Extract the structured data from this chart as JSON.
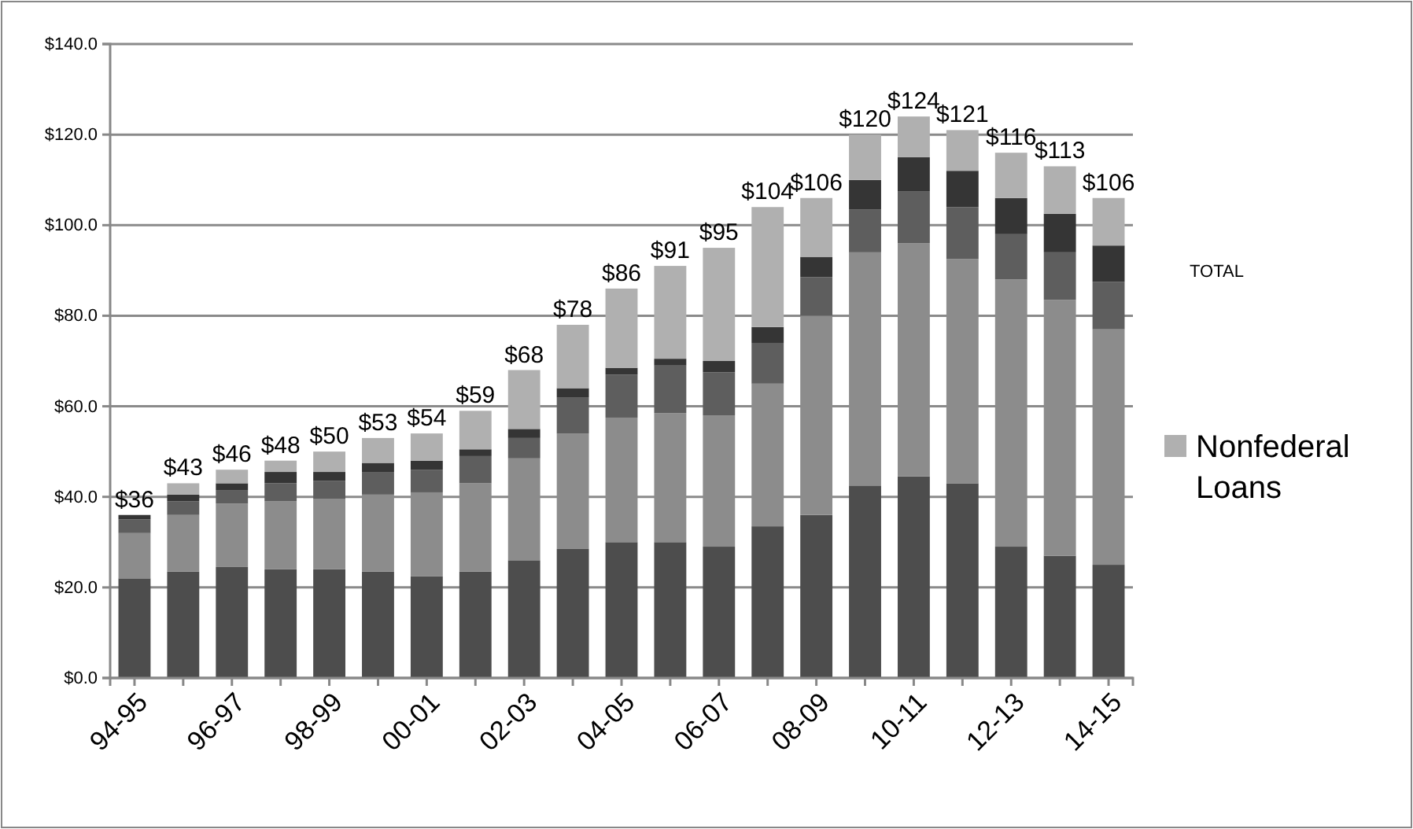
{
  "chart_data": {
    "type": "bar",
    "stacked": true,
    "categories": [
      "94-95",
      null,
      "96-97",
      null,
      "98-99",
      null,
      "00-01",
      null,
      "02-03",
      null,
      "04-05",
      null,
      "06-07",
      null,
      "08-09",
      null,
      "10-11",
      null,
      "12-13",
      null,
      "14-15"
    ],
    "series": [
      {
        "color": "#4d4d4d",
        "values": [
          22,
          23.5,
          24.5,
          24,
          24,
          23.5,
          22.5,
          23.5,
          26,
          28.5,
          30,
          30,
          29,
          33.5,
          36,
          42.5,
          44.5,
          43,
          29,
          27,
          25
        ]
      },
      {
        "color": "#8c8c8c",
        "values": [
          10,
          12.5,
          14,
          15,
          15.5,
          17,
          18.5,
          19.5,
          22.5,
          25.5,
          27.5,
          28.5,
          29,
          31.5,
          44,
          51.5,
          51.5,
          49.5,
          59,
          56.5,
          52
        ]
      },
      {
        "color": "#5e5e5e",
        "values": [
          3,
          3,
          3,
          4,
          4,
          5,
          5,
          6,
          4.5,
          8,
          9.5,
          10.5,
          9.5,
          9,
          8.5,
          9.5,
          11.5,
          11.5,
          10,
          10.5,
          10.5
        ]
      },
      {
        "color": "#353535",
        "values": [
          1,
          1.5,
          1.5,
          2.5,
          2,
          2,
          2,
          1.5,
          2,
          2,
          1.5,
          1.5,
          2.5,
          3.5,
          4.5,
          6.5,
          7.5,
          8,
          8,
          8.5,
          8
        ]
      },
      {
        "name": "Nonfederal Loans",
        "color": "#b0b0b0",
        "values": [
          null,
          2.5,
          3,
          2.5,
          4.5,
          5.5,
          6,
          8.5,
          13,
          14,
          17.5,
          20.5,
          25,
          26.5,
          13,
          10,
          9,
          9,
          10,
          10.5,
          10.5
        ]
      }
    ],
    "totals": [
      "$36",
      "$43",
      "$46",
      "$48",
      "$50",
      "$53",
      "$54",
      "$59",
      "$68",
      "$78",
      "$86",
      "$91",
      "$95",
      "$104",
      "$106",
      "$120",
      "$124",
      "$121",
      "$116",
      "$113",
      "$106"
    ],
    "ylim": [
      0,
      140
    ],
    "yticks": [
      {
        "value": 0,
        "label": "$0.0"
      },
      {
        "value": 20,
        "label": "$20.0"
      },
      {
        "value": 40,
        "label": "$40.0"
      },
      {
        "value": 60,
        "label": "$60.0"
      },
      {
        "value": 80,
        "label": "$80.0"
      },
      {
        "value": 100,
        "label": "$100.0"
      },
      {
        "value": 120,
        "label": "$120.0"
      },
      {
        "value": 140,
        "label": "$140.0"
      }
    ],
    "grid": "y",
    "legend": "right",
    "annotations": [
      "TOTAL"
    ]
  }
}
